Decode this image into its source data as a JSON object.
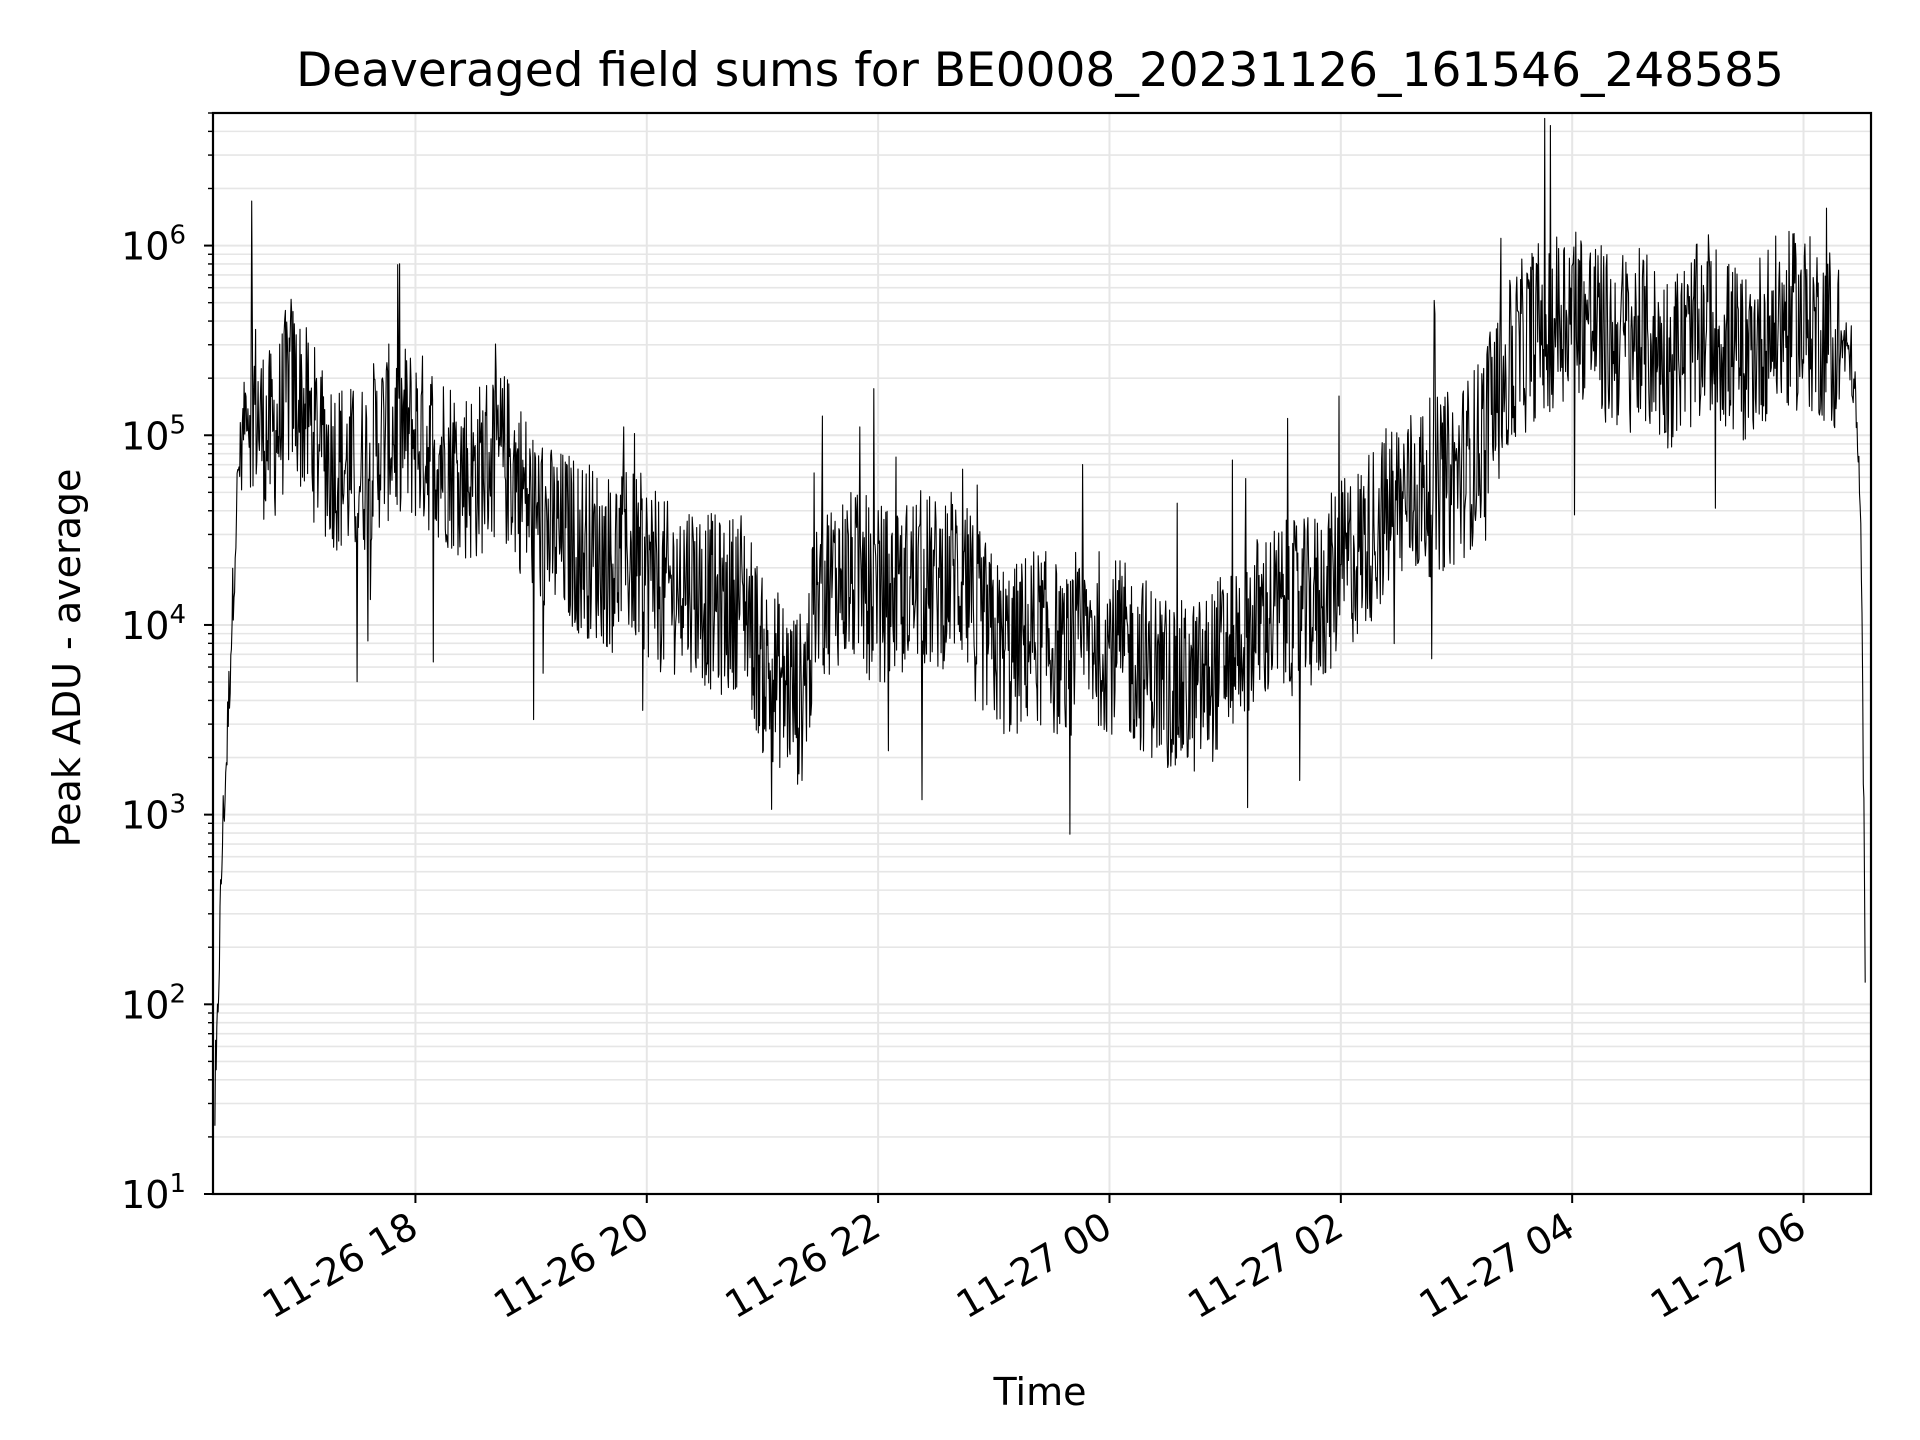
{
  "chart_data": {
    "type": "line",
    "title": "Deaveraged field sums for BE0008_20231126_161546_248585",
    "xlabel": "Time",
    "ylabel": "Peak ADU - average",
    "y_scale": "log",
    "ylim": [
      10,
      5000000
    ],
    "xlim": [
      "2023-11-26 16:15",
      "2023-11-27 06:35"
    ],
    "grid": true,
    "color": "#000000",
    "x_ticks": [
      {
        "value": "2023-11-26 18:00",
        "label": "11-26 18"
      },
      {
        "value": "2023-11-26 20:00",
        "label": "11-26 20"
      },
      {
        "value": "2023-11-26 22:00",
        "label": "11-26 22"
      },
      {
        "value": "2023-11-27 00:00",
        "label": "11-27 00"
      },
      {
        "value": "2023-11-27 02:00",
        "label": "11-27 02"
      },
      {
        "value": "2023-11-27 04:00",
        "label": "11-27 04"
      },
      {
        "value": "2023-11-27 06:00",
        "label": "11-27 06"
      }
    ],
    "y_ticks": [
      {
        "value": 10,
        "base": "10",
        "exp": "1"
      },
      {
        "value": 100,
        "base": "10",
        "exp": "2"
      },
      {
        "value": 1000,
        "base": "10",
        "exp": "3"
      },
      {
        "value": 10000,
        "base": "10",
        "exp": "4"
      },
      {
        "value": 100000,
        "base": "10",
        "exp": "5"
      },
      {
        "value": 1000000,
        "base": "10",
        "exp": "6"
      }
    ],
    "series": [
      {
        "x": [
          "2023-11-26 16:16",
          "2023-11-26 16:18",
          "2023-11-26 16:20",
          "2023-11-26 16:22",
          "2023-11-26 16:25",
          "2023-11-26 16:28",
          "2023-11-26 16:32",
          "2023-11-26 16:36",
          "2023-11-26 16:40",
          "2023-11-26 16:45",
          "2023-11-26 16:50",
          "2023-11-26 16:55",
          "2023-11-26 17:00",
          "2023-11-26 17:10",
          "2023-11-26 17:20",
          "2023-11-26 17:30",
          "2023-11-26 17:40",
          "2023-11-26 17:50",
          "2023-11-26 18:00",
          "2023-11-26 18:10",
          "2023-11-26 18:20",
          "2023-11-26 18:30",
          "2023-11-26 18:40",
          "2023-11-26 18:50",
          "2023-11-26 19:00",
          "2023-11-26 19:10",
          "2023-11-26 19:20",
          "2023-11-26 19:30",
          "2023-11-26 19:40",
          "2023-11-26 19:50",
          "2023-11-26 20:00",
          "2023-11-26 20:10",
          "2023-11-26 20:20",
          "2023-11-26 20:30",
          "2023-11-26 20:40",
          "2023-11-26 20:50",
          "2023-11-26 21:00",
          "2023-11-26 21:10",
          "2023-11-26 21:20",
          "2023-11-26 21:30",
          "2023-11-26 21:40",
          "2023-11-26 21:50",
          "2023-11-26 22:00",
          "2023-11-26 22:10",
          "2023-11-26 22:20",
          "2023-11-26 22:30",
          "2023-11-26 22:40",
          "2023-11-26 22:50",
          "2023-11-26 23:00",
          "2023-11-26 23:10",
          "2023-11-26 23:20",
          "2023-11-26 23:30",
          "2023-11-26 23:40",
          "2023-11-26 23:50",
          "2023-11-27 00:00",
          "2023-11-27 00:10",
          "2023-11-27 00:20",
          "2023-11-27 00:30",
          "2023-11-27 00:40",
          "2023-11-27 00:50",
          "2023-11-27 01:00",
          "2023-11-27 01:10",
          "2023-11-27 01:20",
          "2023-11-27 01:30",
          "2023-11-27 01:40",
          "2023-11-27 01:50",
          "2023-11-27 02:00",
          "2023-11-27 02:10",
          "2023-11-27 02:20",
          "2023-11-27 02:30",
          "2023-11-27 02:40",
          "2023-11-27 02:50",
          "2023-11-27 03:00",
          "2023-11-27 03:10",
          "2023-11-27 03:20",
          "2023-11-27 03:30",
          "2023-11-27 03:40",
          "2023-11-27 03:50",
          "2023-11-27 04:00",
          "2023-11-27 04:10",
          "2023-11-27 04:20",
          "2023-11-27 04:30",
          "2023-11-27 04:40",
          "2023-11-27 04:50",
          "2023-11-27 05:00",
          "2023-11-27 05:10",
          "2023-11-27 05:20",
          "2023-11-27 05:30",
          "2023-11-27 05:40",
          "2023-11-27 05:50",
          "2023-11-27 06:00",
          "2023-11-27 06:10",
          "2023-11-27 06:20",
          "2023-11-27 06:25",
          "2023-11-27 06:28",
          "2023-11-27 06:30",
          "2023-11-27 06:32"
        ],
        "values": [
          20,
          150,
          800,
          2000,
          12000,
          60000,
          150000,
          160000,
          110000,
          95000,
          120000,
          200000,
          150000,
          90000,
          70000,
          60000,
          90000,
          110000,
          100000,
          85000,
          70000,
          60000,
          80000,
          70000,
          40000,
          30000,
          28000,
          25000,
          22000,
          24000,
          20000,
          15000,
          18000,
          14000,
          12000,
          15000,
          6000,
          5000,
          4000,
          15000,
          18000,
          17000,
          15000,
          14000,
          18000,
          16000,
          20000,
          12000,
          8000,
          7000,
          9000,
          8000,
          6000,
          9000,
          8000,
          7000,
          6000,
          5000,
          4500,
          5000,
          7000,
          9000,
          11000,
          12000,
          12000,
          14000,
          20000,
          25000,
          35000,
          45000,
          50000,
          55000,
          60000,
          80000,
          150000,
          250000,
          350000,
          400000,
          500000,
          400000,
          300000,
          350000,
          300000,
          250000,
          300000,
          400000,
          300000,
          250000,
          350000,
          400000,
          400000,
          350000,
          300000,
          250000,
          100000,
          20000,
          200
        ]
      }
    ]
  }
}
